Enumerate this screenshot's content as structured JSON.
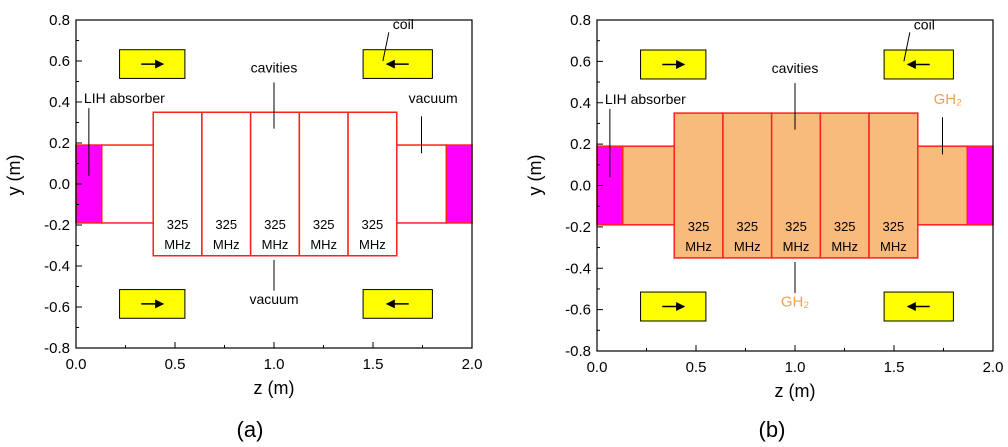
{
  "colors": {
    "absorber": "#ff00ff",
    "coil": "#ffff00",
    "outline": "#ff2020",
    "gas": "#f9bb7c",
    "gh2_text": "#f0a050"
  },
  "panels": [
    {
      "id": "a",
      "label": "(a)",
      "xlabel": "z (m)",
      "ylabel": "y (m)",
      "xticks": [
        "0.0",
        "0.5",
        "1.0",
        "1.5",
        "2.0"
      ],
      "yticks": [
        "0.8",
        "0.6",
        "0.4",
        "0.2",
        "0.0",
        "-0.2",
        "-0.4",
        "-0.6",
        "-0.8"
      ],
      "filled": false,
      "cavity_labels": [
        "325\nMHz",
        "325\nMHz",
        "325\nMHz",
        "325\nMHz",
        "325\nMHz"
      ],
      "annotations": {
        "absorber": "LIH absorber",
        "cavities": "cavities",
        "coil": "coil",
        "side_medium": "vacuum",
        "bottom_medium": "vacuum"
      }
    },
    {
      "id": "b",
      "label": "(b)",
      "xlabel": "z (m)",
      "ylabel": "y (m)",
      "xticks": [
        "0.0",
        "0.5",
        "1.0",
        "1.5",
        "2.0"
      ],
      "yticks": [
        "0.8",
        "0.6",
        "0.4",
        "0.2",
        "0.0",
        "-0.2",
        "-0.4",
        "-0.6",
        "-0.8"
      ],
      "filled": true,
      "cavity_labels": [
        "325\nMHz",
        "325\nMHz",
        "325\nMHz",
        "325\nMHz",
        "325\nMHz"
      ],
      "annotations": {
        "absorber": "LIH absorber",
        "cavities": "cavities",
        "coil": "coil",
        "side_medium": "GH₂",
        "bottom_medium": "GH₂"
      }
    }
  ]
}
